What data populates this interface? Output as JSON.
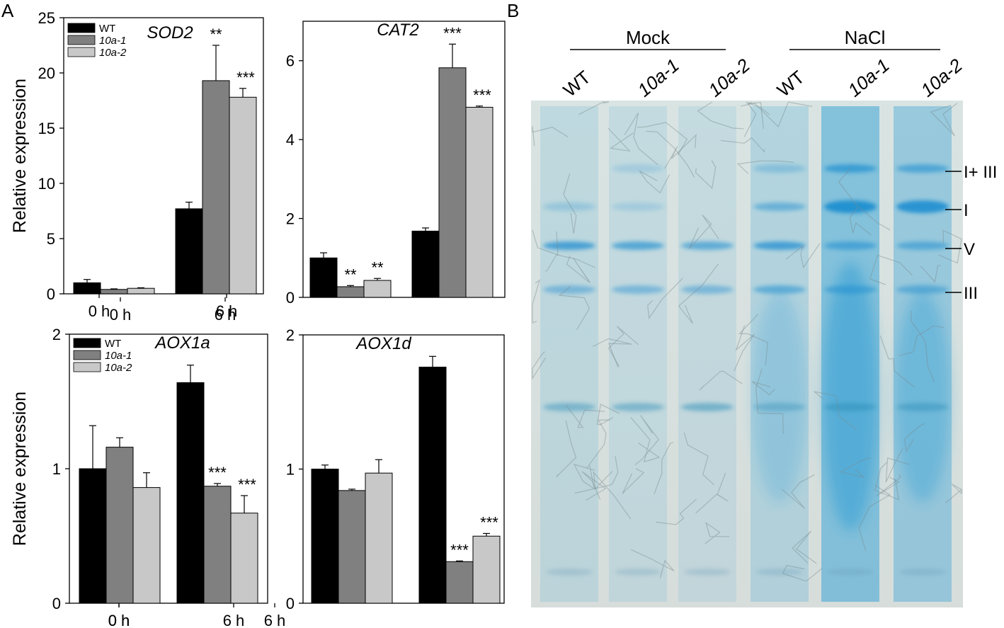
{
  "panel_labels": {
    "a": "A",
    "b": "B"
  },
  "colors": {
    "WT": "#000000",
    "10a-1": "#808080",
    "10a-2": "#c8c8c8"
  },
  "chart_data": [
    {
      "type": "bar",
      "title": "SOD2",
      "ylabel": "Relative expression",
      "categories": [
        "0 h",
        "6 h"
      ],
      "ylim": [
        0,
        25
      ],
      "yticks": [
        0,
        5,
        10,
        15,
        20,
        25
      ],
      "legend": "top-left",
      "series": [
        {
          "name": "WT",
          "values": [
            1.0,
            7.7
          ],
          "errors": [
            0.3,
            0.6
          ],
          "sig": [
            "",
            ""
          ]
        },
        {
          "name": "10a-1",
          "values": [
            0.4,
            19.3
          ],
          "errors": [
            0.05,
            3.2
          ],
          "sig": [
            "",
            "**"
          ]
        },
        {
          "name": "10a-2",
          "values": [
            0.5,
            17.8
          ],
          "errors": [
            0.05,
            0.8
          ],
          "sig": [
            "",
            "***"
          ]
        }
      ]
    },
    {
      "type": "bar",
      "title": "CAT2",
      "ylabel": "",
      "categories": [
        "0 h",
        "6 h"
      ],
      "ylim": [
        0,
        7.0
      ],
      "yticks": [
        0,
        2,
        4,
        6
      ],
      "legend": "none",
      "series": [
        {
          "name": "WT",
          "values": [
            1.0,
            1.68
          ],
          "errors": [
            0.13,
            0.08
          ],
          "sig": [
            "",
            ""
          ]
        },
        {
          "name": "10a-1",
          "values": [
            0.27,
            5.82
          ],
          "errors": [
            0.03,
            0.6
          ],
          "sig": [
            "**",
            "***"
          ]
        },
        {
          "name": "10a-2",
          "values": [
            0.43,
            4.82
          ],
          "errors": [
            0.05,
            0.03
          ],
          "sig": [
            "**",
            "***"
          ]
        }
      ]
    },
    {
      "type": "bar",
      "title": "AOX1a",
      "ylabel": "Relative expression",
      "categories": [
        "0 h",
        "6 h"
      ],
      "ylim": [
        0,
        2
      ],
      "yticks": [
        0,
        1,
        2
      ],
      "legend": "top-left",
      "series": [
        {
          "name": "WT",
          "values": [
            1.0,
            1.64
          ],
          "errors": [
            0.32,
            0.13
          ],
          "sig": [
            "",
            ""
          ]
        },
        {
          "name": "10a-1",
          "values": [
            1.16,
            0.87
          ],
          "errors": [
            0.07,
            0.02
          ],
          "sig": [
            "",
            "***"
          ]
        },
        {
          "name": "10a-2",
          "values": [
            0.86,
            0.67
          ],
          "errors": [
            0.11,
            0.13
          ],
          "sig": [
            "",
            "***"
          ]
        }
      ]
    },
    {
      "type": "bar",
      "title": "AOX1d",
      "ylabel": "",
      "categories": [
        "0 h",
        "6 h"
      ],
      "ylim": [
        0,
        2
      ],
      "yticks": [
        0,
        1,
        2
      ],
      "legend": "none",
      "series": [
        {
          "name": "WT",
          "values": [
            1.0,
            1.76
          ],
          "errors": [
            0.03,
            0.08
          ],
          "sig": [
            "",
            ""
          ]
        },
        {
          "name": "10a-1",
          "values": [
            0.84,
            0.31
          ],
          "errors": [
            0.01,
            0.005
          ],
          "sig": [
            "",
            "***"
          ]
        },
        {
          "name": "10a-2",
          "values": [
            0.97,
            0.5
          ],
          "errors": [
            0.1,
            0.02
          ],
          "sig": [
            "",
            "***"
          ]
        }
      ]
    }
  ],
  "gel": {
    "groups": [
      "Mock",
      "NaCl"
    ],
    "lanes": [
      "WT",
      "10a-1",
      "10a-2",
      "WT",
      "10a-1",
      "10a-2"
    ],
    "complexes": [
      "I+ III",
      "I",
      "V",
      "III"
    ],
    "stain_color": "#2f9fd6"
  }
}
